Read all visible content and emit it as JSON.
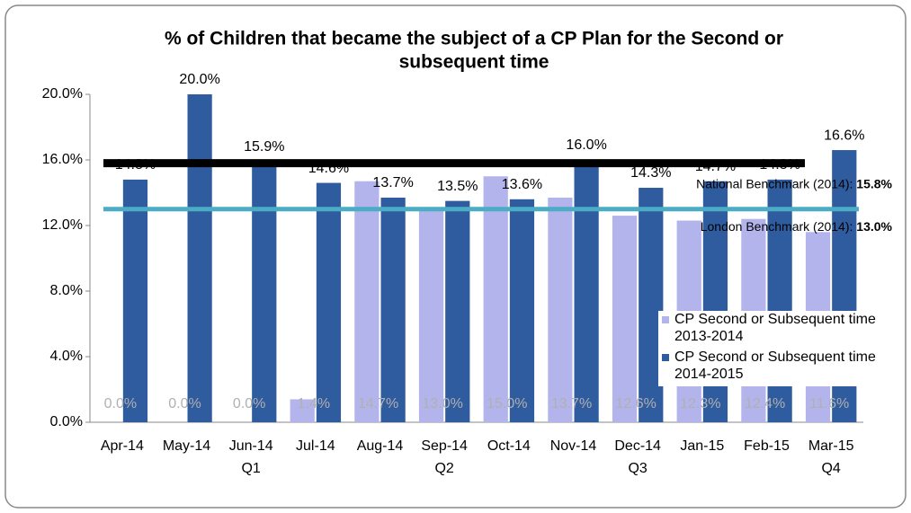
{
  "chart_data": {
    "type": "bar",
    "title": [
      "% of Children that became the subject of a CP Plan for the Second or",
      "subsequent time"
    ],
    "categories": [
      "Apr-14",
      "May-14",
      "Jun-14",
      "Jul-14",
      "Aug-14",
      "Sep-14",
      "Oct-14",
      "Nov-14",
      "Dec-14",
      "Jan-15",
      "Feb-15",
      "Mar-15"
    ],
    "quarters": [
      null,
      null,
      "Q1",
      null,
      null,
      "Q2",
      null,
      null,
      "Q3",
      null,
      null,
      "Q4"
    ],
    "series": [
      {
        "name": "CP Second or Subsequent time 2013-2014",
        "color": "#b4b4ec",
        "values": [
          0.0,
          0.0,
          0.0,
          1.4,
          14.7,
          13.0,
          15.0,
          13.7,
          12.6,
          12.3,
          12.4,
          11.6
        ],
        "value_labels": [
          "0.0%",
          "0.0%",
          "0.0%",
          "1.4%",
          "14.7%",
          "13.0%",
          "15.0%",
          "13.7%",
          "12.6%",
          "12.3%",
          "12.4%",
          "11.6%"
        ]
      },
      {
        "name": "CP Second or Subsequent time 2014-2015",
        "color": "#2f5c9e",
        "values": [
          14.8,
          20.0,
          15.9,
          14.6,
          13.7,
          13.5,
          13.6,
          16.0,
          14.3,
          14.7,
          14.8,
          16.6
        ],
        "value_labels": [
          "14.8%",
          "20.0%",
          "15.9%",
          "14.6%",
          "13.7%",
          "13.5%",
          "13.6%",
          "16.0%",
          "14.3%",
          "14.7%",
          "14.8%",
          "16.6%"
        ]
      }
    ],
    "benchmarks": [
      {
        "name": "National Benchmark (2014):",
        "value": 15.8,
        "value_label": "15.8%",
        "color": "#000000"
      },
      {
        "name": "London  Benchmark (2014):",
        "value": 13.0,
        "value_label": "13.0%",
        "color": "#4bacc6"
      }
    ],
    "ylim": [
      0,
      20
    ],
    "yticks": [
      {
        "value": 0,
        "label": "0.0%"
      },
      {
        "value": 4,
        "label": "4.0%"
      },
      {
        "value": 8,
        "label": "8.0%"
      },
      {
        "value": 12,
        "label": "12.0%"
      },
      {
        "value": 16,
        "label": "16.0%"
      },
      {
        "value": 20,
        "label": "20.0%"
      }
    ]
  }
}
